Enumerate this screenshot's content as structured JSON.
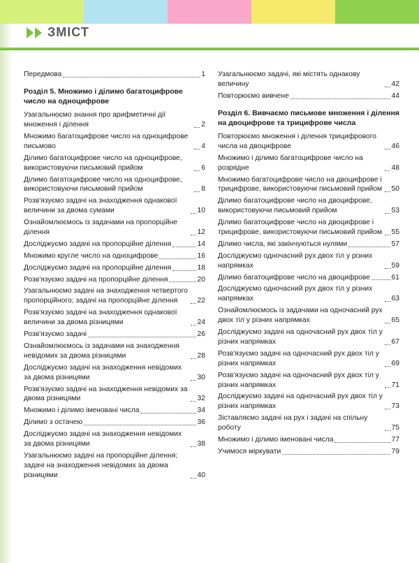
{
  "colors": {
    "stripes": [
      "#d6f07a",
      "#b2e3f0",
      "#f9a8c9",
      "#f7e96b",
      "#8fd14f"
    ],
    "green_bar": "#7cc242",
    "chevron": "#7cc242",
    "title": "#5a5a5a",
    "text": "#222222"
  },
  "title": "ЗМІСТ",
  "left_column": [
    {
      "type": "entry",
      "label": "Передмова",
      "page": "1"
    },
    {
      "type": "section",
      "label": "Розділ 5. Множимо і ділимо багатоцифрове число на одноцифрове"
    },
    {
      "type": "entry",
      "label": "Узагальнюємо знання про арифметичні дії множення і ділення",
      "page": "2"
    },
    {
      "type": "entry",
      "label": "Множимо багатоцифрове число на одноцифрове письмово",
      "page": "4"
    },
    {
      "type": "entry",
      "label": "Ділимо багатоцифрове число на одноцифрове, використовуючи письмовий прийом",
      "page": "6"
    },
    {
      "type": "entry",
      "label": "Ділимо багатоцифрове число на одноцифрове, використовуючи письмовий прийом",
      "page": "8"
    },
    {
      "type": "entry",
      "label": "Розв'язуємо задачі на знаходження однакової величини за двома сумами",
      "page": "10"
    },
    {
      "type": "entry",
      "label": "Ознайомлюємось із задачами на пропорційне ділення",
      "page": "12"
    },
    {
      "type": "entry",
      "label": "Досліджуємо задачі на пропорційне ділення",
      "page": "14"
    },
    {
      "type": "entry",
      "label": "Множимо кругле число на одноцифрове",
      "page": "16"
    },
    {
      "type": "entry",
      "label": "Досліджуємо задачі на пропорційне ділення",
      "page": "18"
    },
    {
      "type": "entry",
      "label": "Розв'язуємо задачі на пропорційне ділення",
      "page": "20"
    },
    {
      "type": "entry",
      "label": "Узагальнюємо задачі на знаходження четвертого пропорційного; задачі на пропорційне ділення",
      "page": "22"
    },
    {
      "type": "entry",
      "label": "Розв'язуємо задачі на знаходження однакової величини за двома різницями",
      "page": "24"
    },
    {
      "type": "entry",
      "label": "Розв'язуємо задачі",
      "page": "26"
    },
    {
      "type": "entry",
      "label": "Ознайомлюємось із задачами на знаходження невідомих за двома різницями",
      "page": "28"
    },
    {
      "type": "entry",
      "label": "Досліджуємо задачі на знаходження невідомих за двома різницями",
      "page": "30"
    },
    {
      "type": "entry",
      "label": "Розв'язуємо задачі на знаходження невідомих за двома різницями",
      "page": "32"
    },
    {
      "type": "entry",
      "label": "Множимо і ділимо іменовані числа",
      "page": "34"
    },
    {
      "type": "entry",
      "label": "Ділимо з остачею",
      "page": "36"
    },
    {
      "type": "entry",
      "label": "Досліджуємо задачі на знаходження невідомих за двома різницями",
      "page": "38"
    },
    {
      "type": "entry",
      "label": "Узагальнюємо задачі на пропорційне ділення; задачі на знаходження невідомих за двома різницями",
      "page": "40"
    }
  ],
  "right_column": [
    {
      "type": "entry",
      "label": "Узагальнюємо задачі, які містять однакову величину",
      "page": "42"
    },
    {
      "type": "entry",
      "label": "Повторюємо вивчене",
      "page": "44"
    },
    {
      "type": "section",
      "label": "Розділ 6. Вивчаємо письмове множення і ділення на двоцифрове та трицифрове числа"
    },
    {
      "type": "entry",
      "label": "Повторюємо множення і ділення трицифрового числа на двоцифрове",
      "page": "46"
    },
    {
      "type": "entry",
      "label": "Множимо і ділимо багатоцифрове число на розрядне",
      "page": "48"
    },
    {
      "type": "entry",
      "label": "Множимо багатоцифрове число на двоцифрове і трицифрове, використовуючи письмовий прийом",
      "page": "50"
    },
    {
      "type": "entry",
      "label": "Ділимо багатоцифрове число на двоцифрове, використовуючи письмовий прийом",
      "page": "53"
    },
    {
      "type": "entry",
      "label": "Ділимо багатоцифрове число на двоцифрове і трицифрове, використовуючи письмовий прийом",
      "page": "55"
    },
    {
      "type": "entry",
      "label": "Ділимо числа, які закінчуються нулями",
      "page": "57"
    },
    {
      "type": "entry",
      "label": "Досліджуємо одночасний рух двох тіл у різних напрямках",
      "page": "59"
    },
    {
      "type": "entry",
      "label": "Ділимо багатоцифрове число на двоцифрове",
      "page": "61"
    },
    {
      "type": "entry",
      "label": "Досліджуємо одночасний рух двох тіл у різних напрямках",
      "page": "63"
    },
    {
      "type": "entry",
      "label": "Ознайомлюємось із задачами на одночасний рух двох тіл у різних напрямках",
      "page": "65"
    },
    {
      "type": "entry",
      "label": "Досліджуємо задачі на одночасний рух двох тіл у різних напрямках",
      "page": "67"
    },
    {
      "type": "entry",
      "label": "Розв'язуємо задачі на одночасний рух двох тіл у різних напрямках",
      "page": "69"
    },
    {
      "type": "entry",
      "label": "Розв'язуємо задачі на одночасний рух двох тіл у різних напрямках",
      "page": "71"
    },
    {
      "type": "entry",
      "label": "Досліджуємо задачі на одночасний рух двох тіл у різних напрямках",
      "page": "73"
    },
    {
      "type": "entry",
      "label": "Зіставляємо задачі на рух і задачі на спільну роботу",
      "page": "75"
    },
    {
      "type": "entry",
      "label": "Множимо і ділимо іменовані числа",
      "page": "77"
    },
    {
      "type": "entry",
      "label": "Учимося міркувати",
      "page": "79"
    }
  ]
}
